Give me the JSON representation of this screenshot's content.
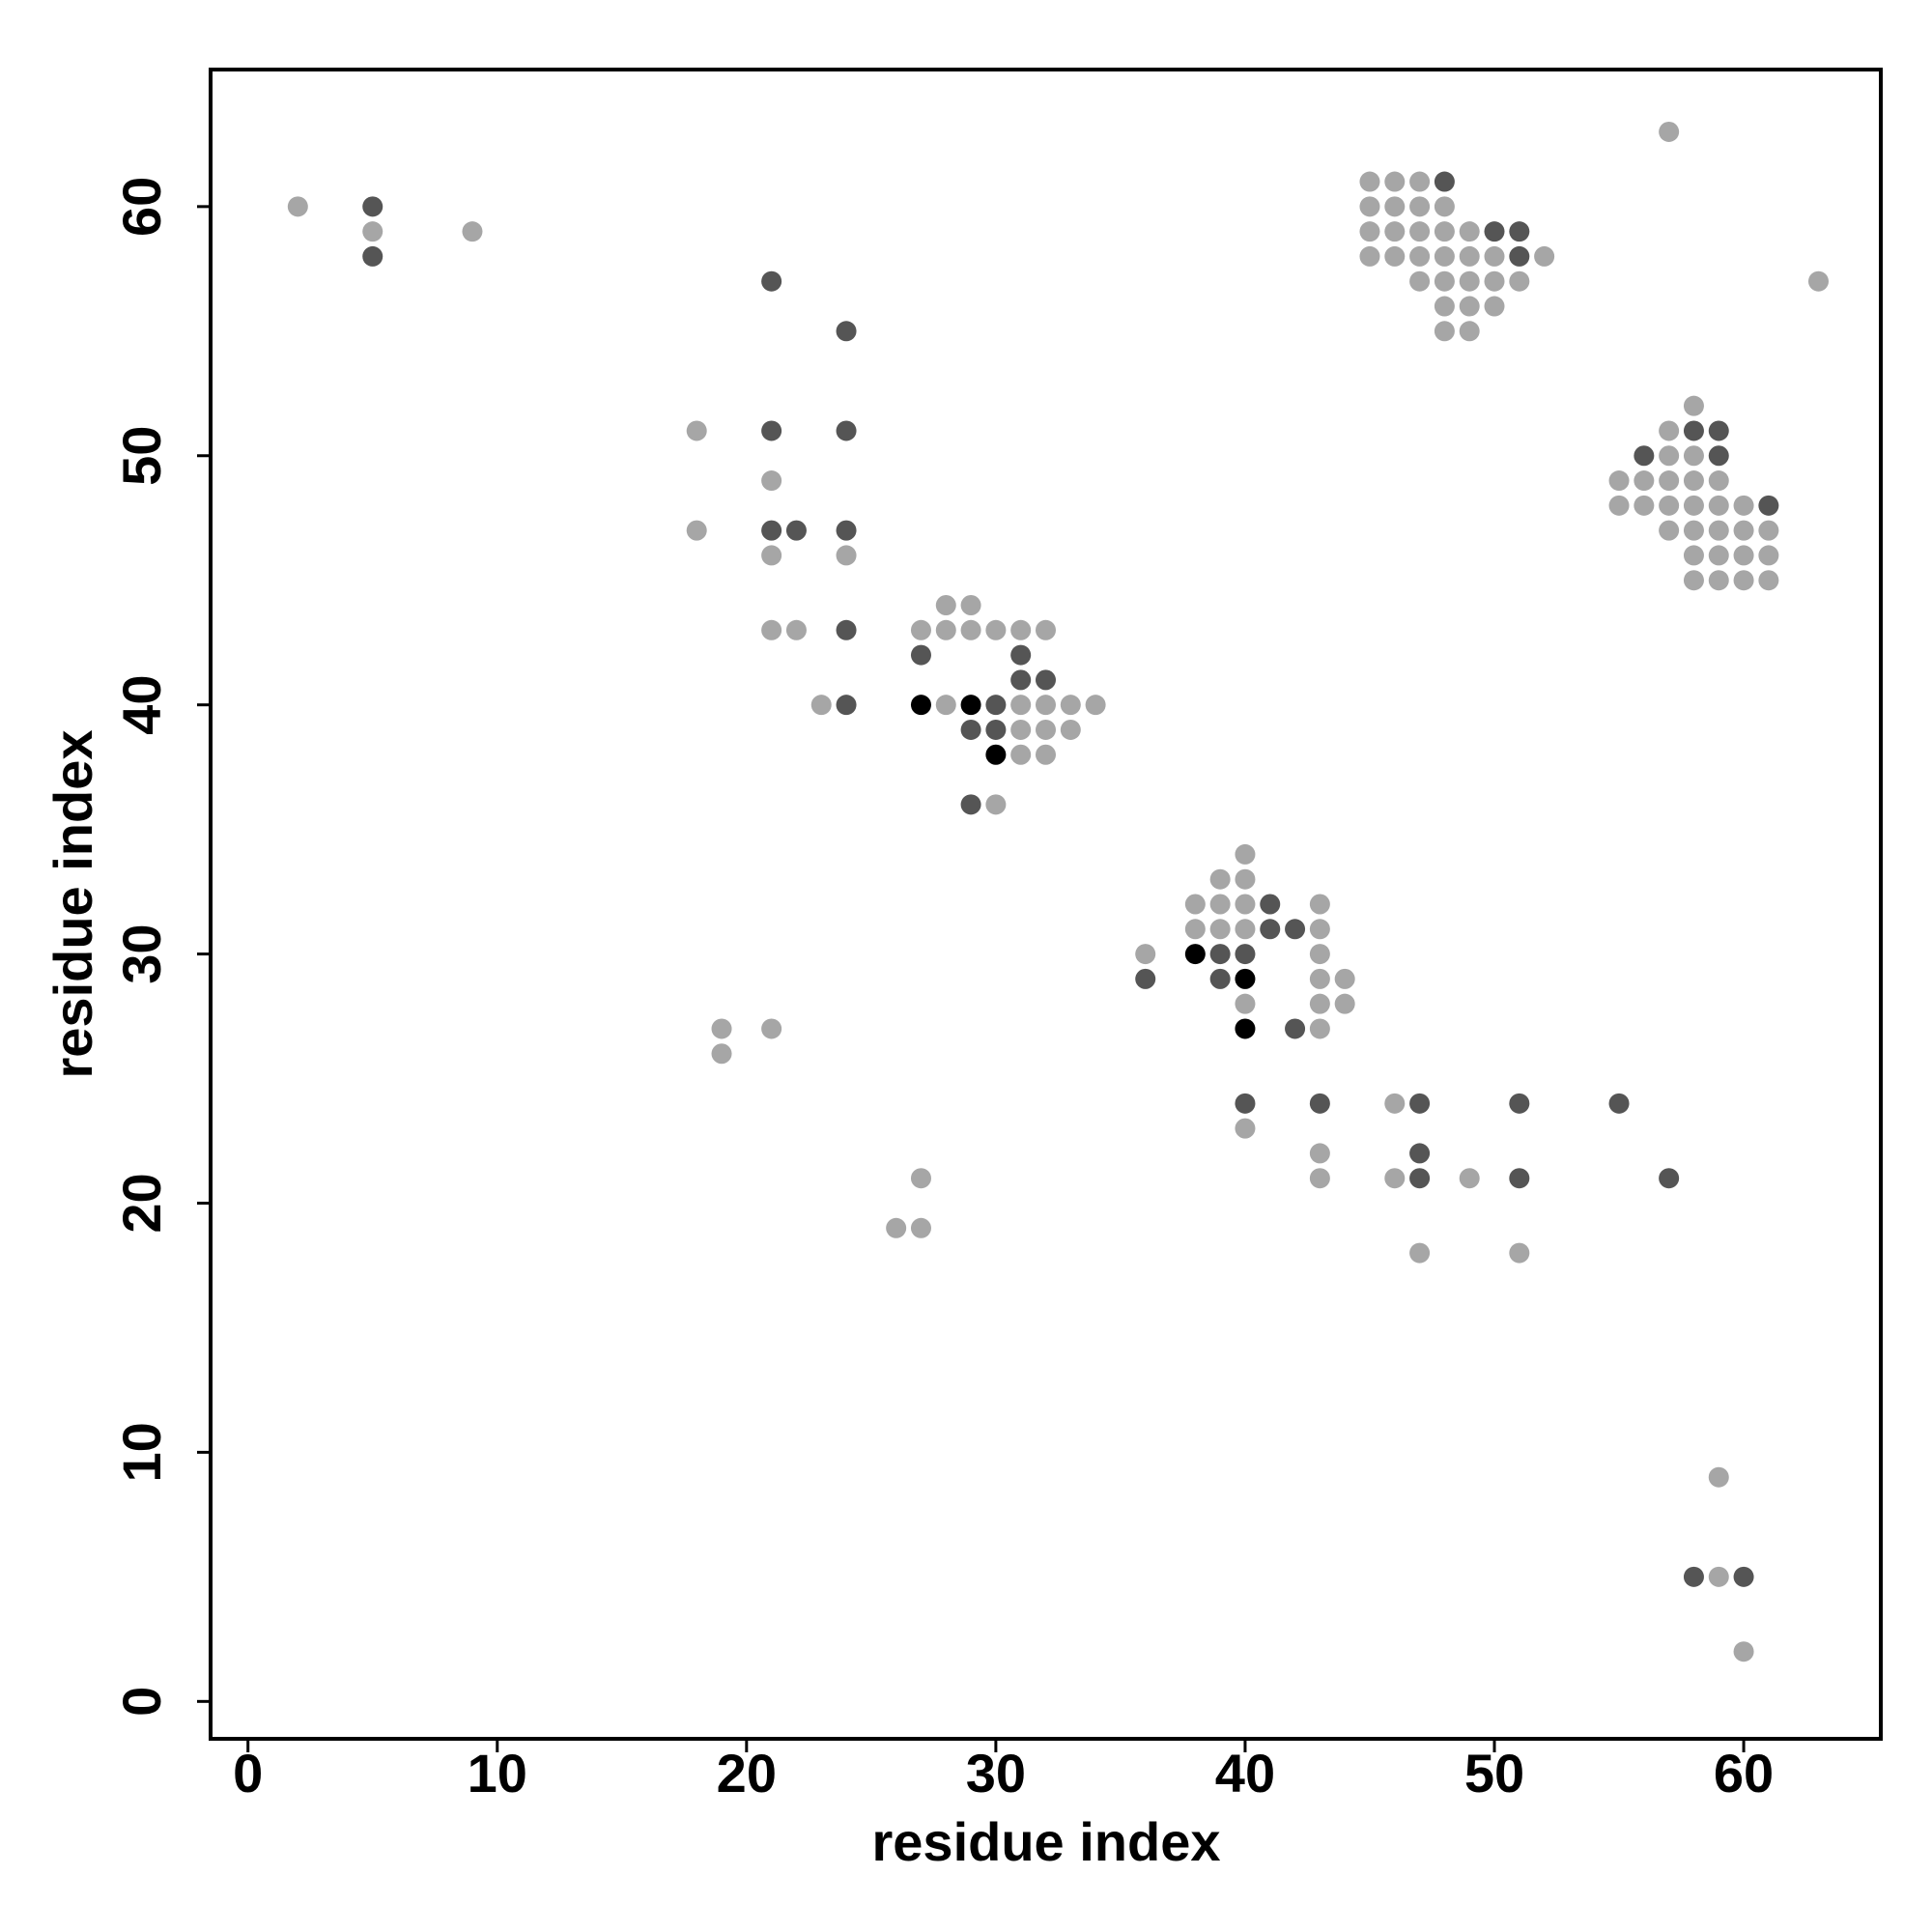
{
  "chart_data": {
    "type": "scatter",
    "xlabel": "residue index",
    "ylabel": "residue index",
    "xlim": [
      -1.5,
      65.5
    ],
    "ylim": [
      -1.5,
      65.5
    ],
    "xticks": [
      0,
      10,
      20,
      30,
      40,
      50,
      60
    ],
    "yticks": [
      0,
      10,
      20,
      30,
      40,
      50,
      60
    ],
    "series": [
      {
        "color": "#a6a6a6",
        "x": [
          57,
          45,
          46,
          47,
          2,
          45,
          46,
          47,
          48,
          5,
          9,
          45,
          46,
          47,
          48,
          49,
          45,
          46,
          47,
          48,
          49,
          50,
          52,
          47,
          48,
          49,
          50,
          51,
          63,
          48,
          49,
          50,
          48,
          49,
          58,
          18,
          57,
          57,
          58,
          21,
          55,
          56,
          57,
          58,
          59,
          55,
          56,
          57,
          58,
          59,
          60,
          18,
          57,
          58,
          59,
          60,
          61,
          21,
          24,
          58,
          59,
          60,
          61,
          58,
          59,
          60,
          61,
          28,
          29,
          21,
          22,
          27,
          28,
          29,
          30,
          31,
          32,
          23,
          28,
          31,
          32,
          33,
          34,
          31,
          32,
          33,
          31,
          32,
          30,
          40,
          39,
          40,
          38,
          39,
          40,
          43,
          38,
          39,
          40,
          43,
          36,
          43,
          43,
          44,
          40,
          43,
          44,
          19,
          21,
          43,
          19,
          46,
          40,
          43,
          27,
          43,
          46,
          49,
          26,
          27,
          47,
          51,
          59,
          59,
          60
        ],
        "y": [
          63,
          61,
          61,
          61,
          60,
          60,
          60,
          60,
          60,
          59,
          59,
          59,
          59,
          59,
          59,
          59,
          58,
          58,
          58,
          58,
          58,
          58,
          58,
          57,
          57,
          57,
          57,
          57,
          57,
          56,
          56,
          56,
          55,
          55,
          52,
          51,
          51,
          50,
          50,
          49,
          49,
          49,
          49,
          49,
          49,
          48,
          48,
          48,
          48,
          48,
          48,
          47,
          47,
          47,
          47,
          47,
          47,
          46,
          46,
          46,
          46,
          46,
          46,
          45,
          45,
          45,
          45,
          44,
          44,
          43,
          43,
          43,
          43,
          43,
          43,
          43,
          43,
          40,
          40,
          40,
          40,
          40,
          40,
          39,
          39,
          39,
          38,
          38,
          36,
          34,
          33,
          33,
          32,
          32,
          32,
          32,
          31,
          31,
          31,
          31,
          30,
          30,
          29,
          29,
          28,
          28,
          28,
          27,
          27,
          27,
          26,
          24,
          23,
          22,
          21,
          21,
          21,
          21,
          19,
          19,
          18,
          18,
          9,
          5,
          2
        ]
      },
      {
        "color": "#555555",
        "x": [
          48,
          5,
          50,
          51,
          5,
          51,
          21,
          24,
          21,
          24,
          58,
          59,
          56,
          59,
          61,
          21,
          22,
          24,
          24,
          27,
          31,
          31,
          32,
          24,
          30,
          29,
          30,
          29,
          41,
          41,
          42,
          39,
          40,
          36,
          39,
          42,
          40,
          43,
          47,
          51,
          55,
          47,
          47,
          51,
          57,
          58,
          60
        ],
        "y": [
          61,
          60,
          59,
          59,
          58,
          58,
          57,
          55,
          51,
          51,
          51,
          51,
          50,
          50,
          48,
          47,
          47,
          47,
          43,
          42,
          42,
          41,
          41,
          40,
          40,
          39,
          39,
          36,
          32,
          31,
          31,
          30,
          30,
          29,
          29,
          27,
          24,
          24,
          24,
          24,
          24,
          22,
          21,
          21,
          21,
          5,
          5
        ]
      },
      {
        "color": "#000000",
        "x": [
          27,
          29,
          30,
          38,
          40,
          40
        ],
        "y": [
          40,
          40,
          38,
          30,
          29,
          27
        ]
      }
    ]
  }
}
